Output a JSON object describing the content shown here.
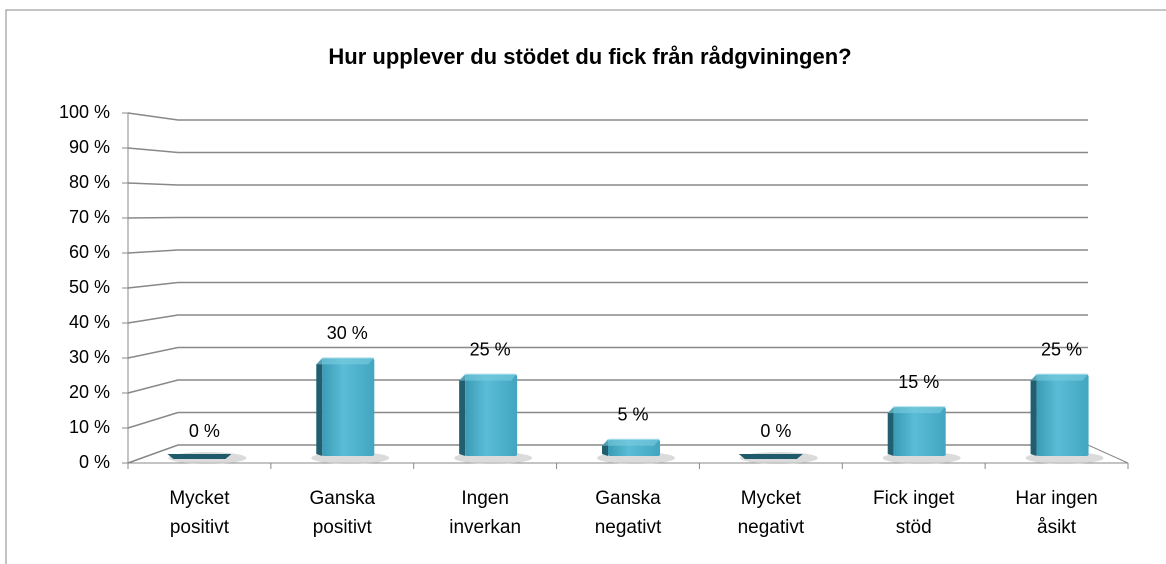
{
  "chart_data": {
    "type": "bar",
    "title": "Hur upplever du stödet du fick från rådgviningen?",
    "categories": [
      "Mycket positivt",
      "Ganska positivt",
      "Ingen inverkan",
      "Ganska negativt",
      "Mycket negativt",
      "Fick inget stöd",
      "Har ingen åsikt"
    ],
    "values": [
      0,
      30,
      25,
      5,
      0,
      15,
      25
    ],
    "value_labels": [
      "0 %",
      "30 %",
      "25 %",
      "5 %",
      "0 %",
      "15 %",
      "25 %"
    ],
    "color": "#4bacc6",
    "ylim": [
      0,
      100
    ],
    "yticks": [
      {
        "value": 0,
        "label": "0 %"
      },
      {
        "value": 10,
        "label": "10 %"
      },
      {
        "value": 20,
        "label": "20 %"
      },
      {
        "value": 30,
        "label": "30 %"
      },
      {
        "value": 40,
        "label": "40 %"
      },
      {
        "value": 50,
        "label": "50 %"
      },
      {
        "value": 60,
        "label": "60 %"
      },
      {
        "value": 70,
        "label": "70 %"
      },
      {
        "value": 80,
        "label": "80 %"
      },
      {
        "value": 90,
        "label": "90 %"
      },
      {
        "value": 100,
        "label": "100 %"
      }
    ],
    "grid": true
  }
}
